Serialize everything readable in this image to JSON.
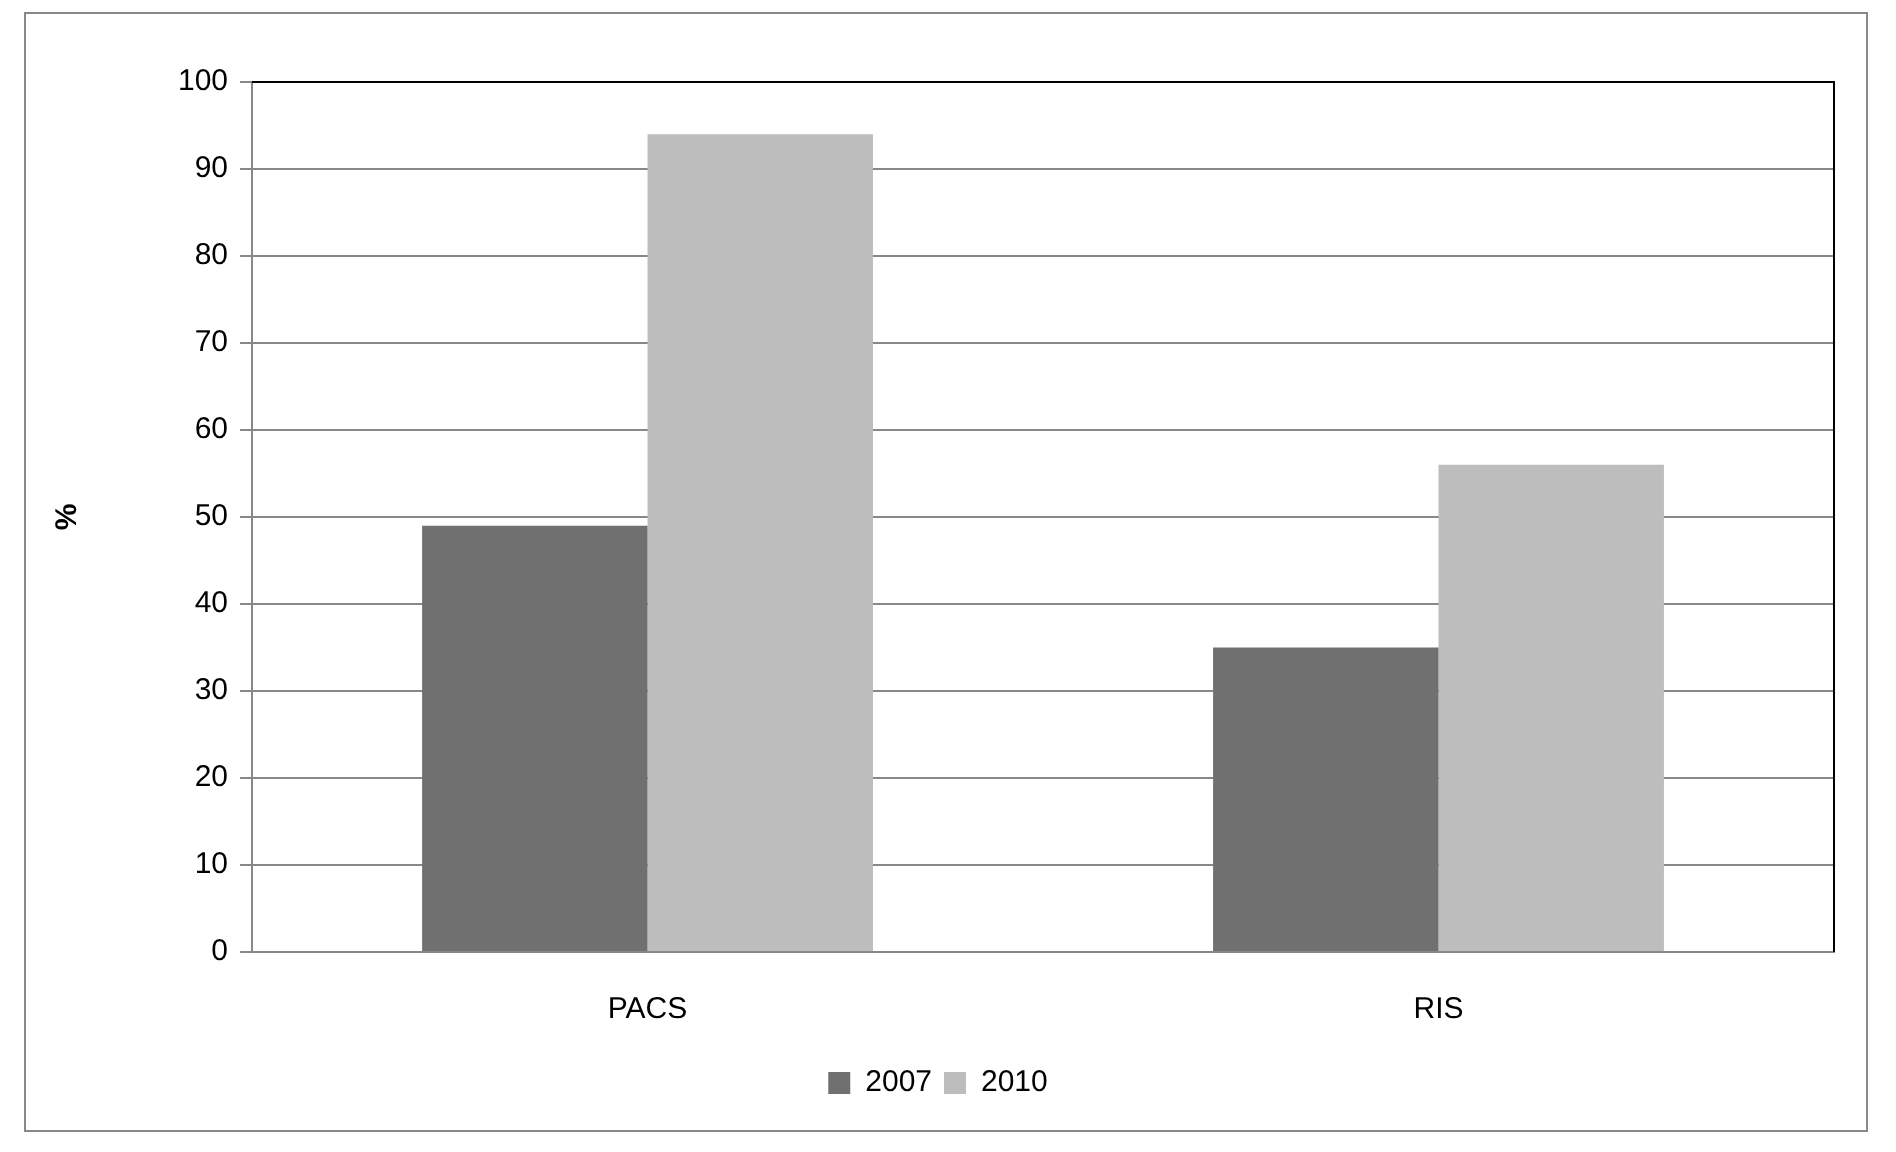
{
  "chart_data": {
    "type": "bar",
    "ylabel": "%",
    "categories": [
      "PACS",
      "RIS"
    ],
    "series": [
      {
        "name": "2007",
        "color": "#707070",
        "values": [
          49,
          35
        ]
      },
      {
        "name": "2010",
        "color": "#bdbdbd",
        "values": [
          94,
          56
        ]
      }
    ],
    "ylim": [
      0,
      100
    ],
    "yticks": [
      0,
      10,
      20,
      30,
      40,
      50,
      60,
      70,
      80,
      90,
      100
    ],
    "grid": "y",
    "legend": "bottom"
  }
}
